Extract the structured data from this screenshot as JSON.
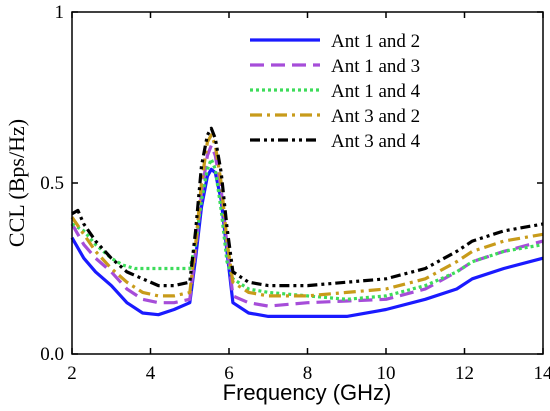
{
  "chart_data": {
    "type": "line",
    "xlabel": "Frequency (GHz)",
    "ylabel": "CCL (Bps/Hz)",
    "xlim": [
      2,
      14
    ],
    "ylim": [
      0,
      1
    ],
    "x_ticks": [
      "2",
      "4",
      "6",
      "8",
      "10",
      "12",
      "14"
    ],
    "y_ticks": [
      "0.0",
      "0.5",
      "1"
    ],
    "legend_position": "top-right",
    "grid": false,
    "series": [
      {
        "name": "Ant 1 and 2",
        "color": "#1a1aff",
        "dash": "solid",
        "x": [
          2.0,
          2.3,
          2.6,
          3.0,
          3.4,
          3.8,
          4.2,
          4.6,
          5.0,
          5.15,
          5.3,
          5.45,
          5.55,
          5.65,
          5.8,
          5.95,
          6.1,
          6.5,
          7.0,
          8.0,
          9.0,
          10.0,
          11.0,
          11.8,
          12.2,
          13.0,
          14.0
        ],
        "y": [
          0.34,
          0.28,
          0.24,
          0.2,
          0.15,
          0.12,
          0.115,
          0.13,
          0.15,
          0.28,
          0.43,
          0.52,
          0.54,
          0.53,
          0.45,
          0.3,
          0.15,
          0.12,
          0.11,
          0.11,
          0.11,
          0.13,
          0.16,
          0.19,
          0.22,
          0.25,
          0.28
        ]
      },
      {
        "name": "Ant 1 and 3",
        "color": "#a64dd9",
        "dash": "long-dash",
        "x": [
          2.0,
          2.3,
          2.6,
          3.0,
          3.4,
          3.8,
          4.2,
          4.6,
          5.0,
          5.15,
          5.3,
          5.45,
          5.55,
          5.65,
          5.8,
          5.95,
          6.1,
          6.5,
          7.0,
          8.0,
          9.0,
          10.0,
          11.0,
          11.8,
          12.2,
          13.0,
          14.0
        ],
        "y": [
          0.38,
          0.32,
          0.28,
          0.24,
          0.19,
          0.16,
          0.15,
          0.15,
          0.16,
          0.3,
          0.47,
          0.58,
          0.61,
          0.58,
          0.48,
          0.32,
          0.17,
          0.15,
          0.14,
          0.15,
          0.155,
          0.16,
          0.19,
          0.24,
          0.27,
          0.3,
          0.33
        ]
      },
      {
        "name": "Ant 1 and 4",
        "color": "#3ddc5a",
        "dash": "dot",
        "x": [
          2.0,
          2.3,
          2.6,
          3.0,
          3.3,
          3.6,
          4.0,
          4.5,
          5.0,
          5.15,
          5.3,
          5.45,
          5.55,
          5.65,
          5.8,
          5.95,
          6.1,
          6.5,
          7.0,
          8.0,
          9.0,
          10.0,
          11.0,
          11.8,
          12.2,
          13.0,
          14.0
        ],
        "y": [
          0.38,
          0.36,
          0.32,
          0.28,
          0.26,
          0.25,
          0.25,
          0.25,
          0.25,
          0.32,
          0.45,
          0.54,
          0.57,
          0.54,
          0.42,
          0.27,
          0.22,
          0.19,
          0.18,
          0.17,
          0.16,
          0.17,
          0.2,
          0.24,
          0.27,
          0.3,
          0.32
        ]
      },
      {
        "name": "Ant 3 and 2",
        "color": "#c89b1a",
        "dash": "dash-dot",
        "x": [
          2.0,
          2.3,
          2.6,
          3.0,
          3.4,
          3.8,
          4.2,
          4.6,
          5.0,
          5.15,
          5.3,
          5.45,
          5.55,
          5.65,
          5.8,
          5.95,
          6.1,
          6.5,
          7.0,
          8.0,
          9.0,
          10.0,
          11.0,
          11.8,
          12.2,
          13.0,
          14.0
        ],
        "y": [
          0.4,
          0.35,
          0.3,
          0.25,
          0.21,
          0.18,
          0.17,
          0.17,
          0.18,
          0.32,
          0.5,
          0.62,
          0.64,
          0.61,
          0.5,
          0.33,
          0.21,
          0.18,
          0.17,
          0.17,
          0.18,
          0.19,
          0.22,
          0.27,
          0.3,
          0.33,
          0.35
        ]
      },
      {
        "name": "Ant 3 and 4",
        "color": "#000000",
        "dash": "dash-dot-dot",
        "x": [
          2.0,
          2.15,
          2.3,
          2.6,
          3.0,
          3.4,
          3.8,
          4.2,
          4.6,
          5.0,
          5.15,
          5.3,
          5.45,
          5.55,
          5.65,
          5.8,
          5.95,
          6.1,
          6.5,
          7.0,
          8.0,
          9.0,
          10.0,
          11.0,
          11.8,
          12.2,
          13.0,
          14.0
        ],
        "y": [
          0.41,
          0.42,
          0.38,
          0.33,
          0.28,
          0.24,
          0.22,
          0.2,
          0.2,
          0.21,
          0.36,
          0.55,
          0.64,
          0.66,
          0.63,
          0.53,
          0.37,
          0.24,
          0.21,
          0.2,
          0.2,
          0.21,
          0.22,
          0.25,
          0.3,
          0.33,
          0.36,
          0.38
        ]
      }
    ]
  }
}
